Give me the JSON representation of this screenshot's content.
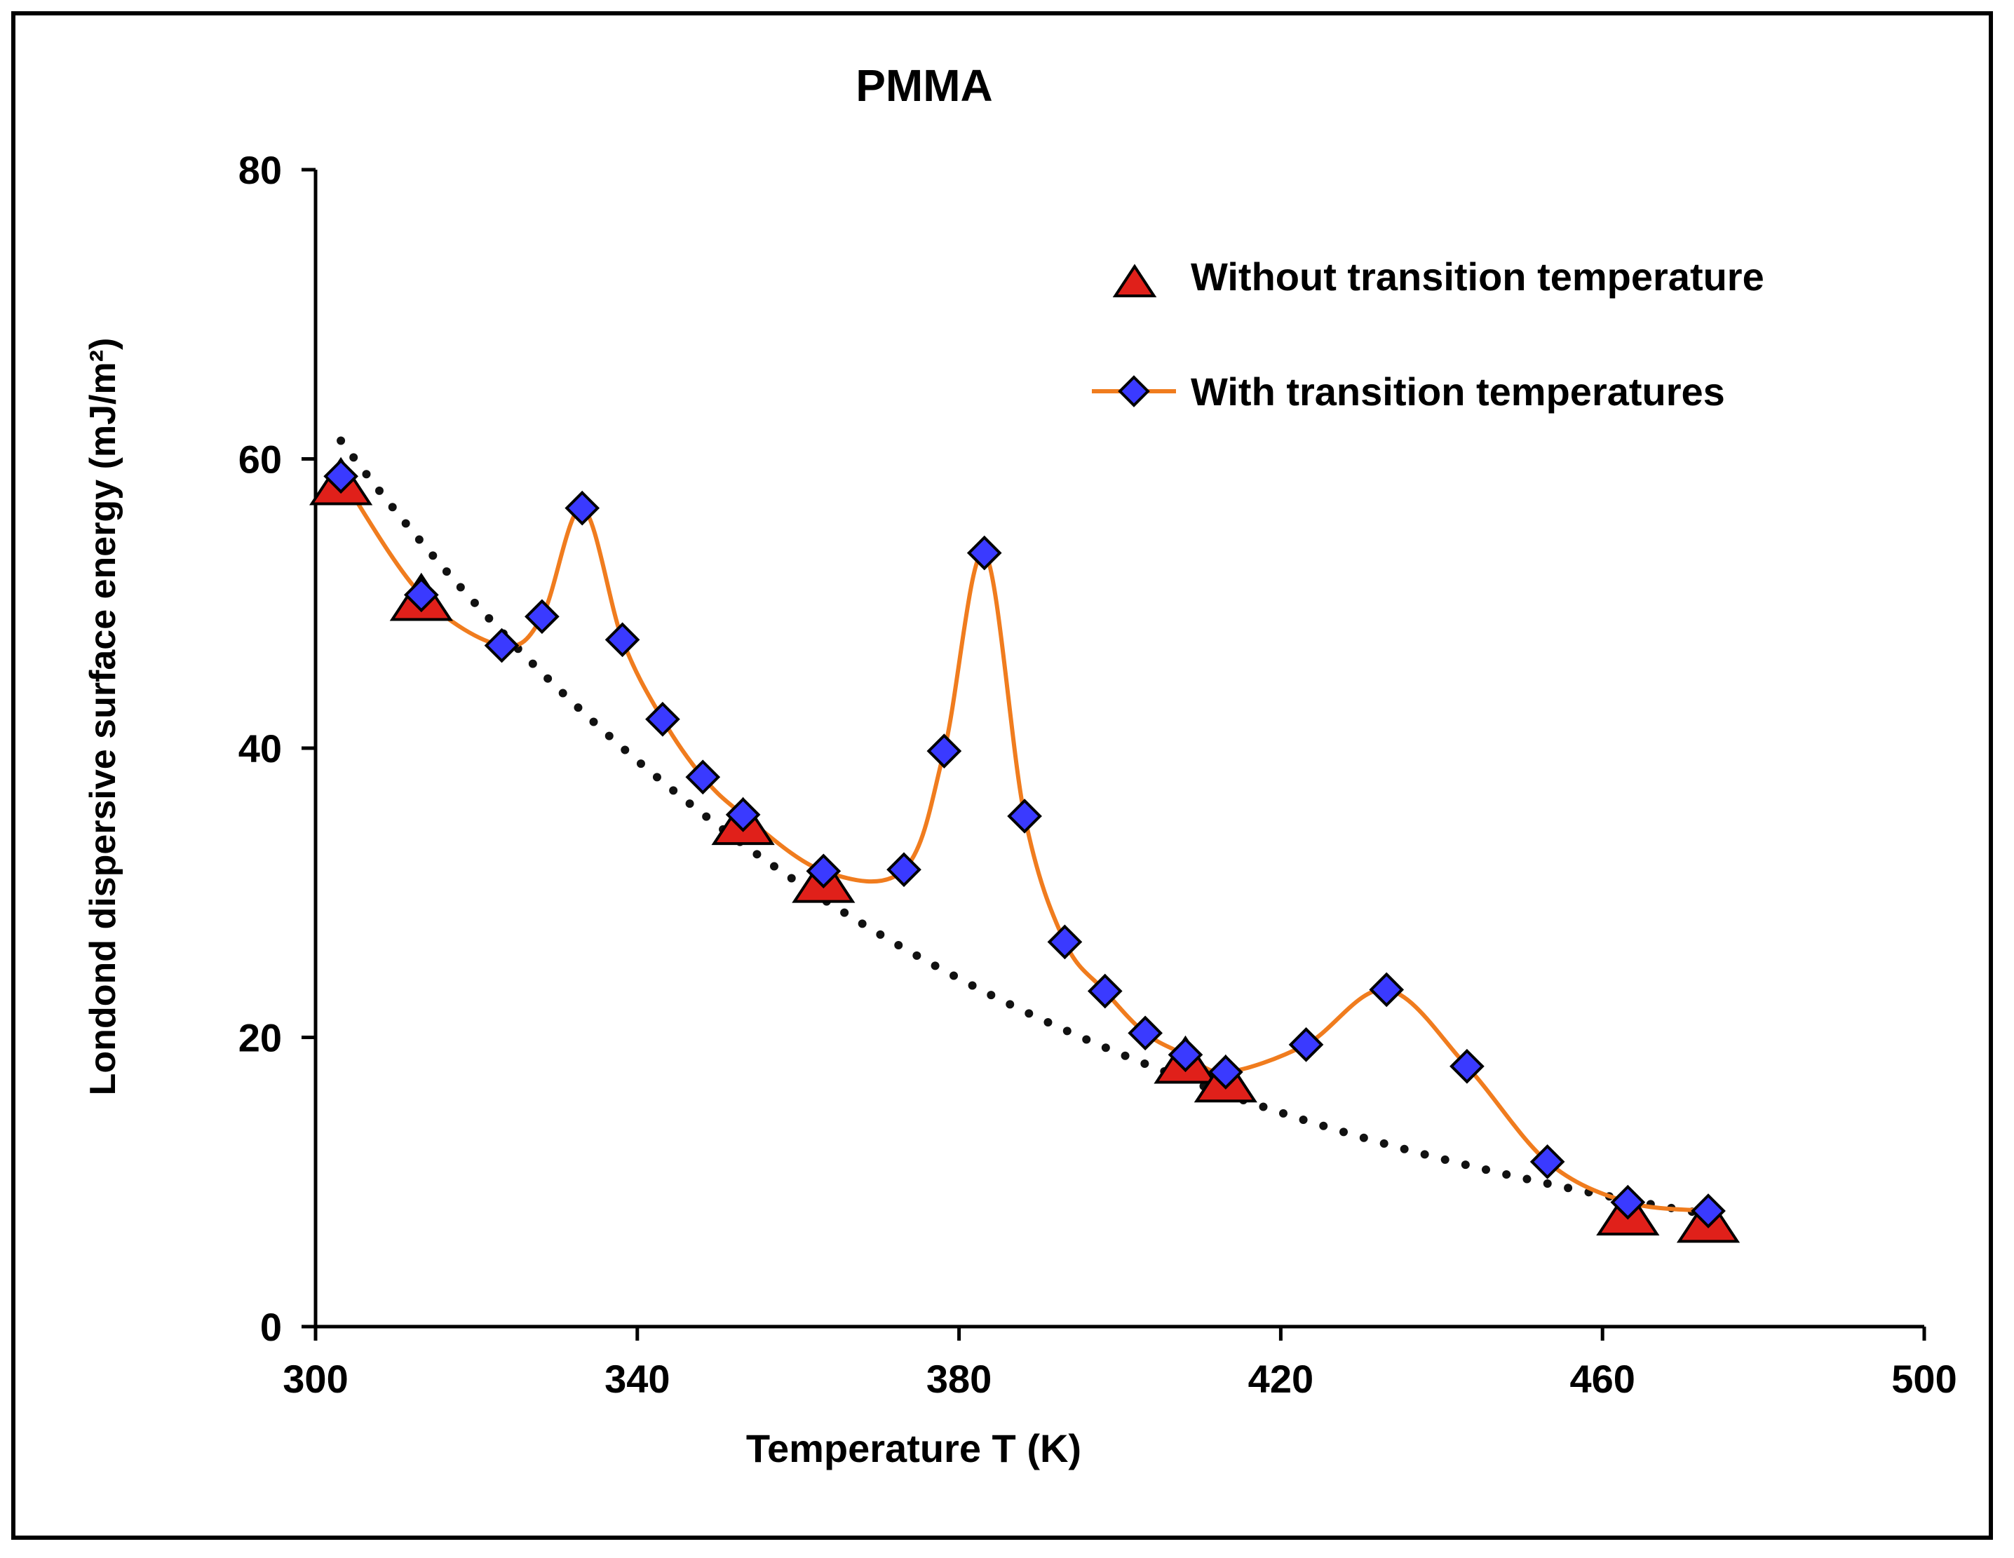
{
  "chart_data": {
    "type": "scatter-line",
    "title": "PMMA",
    "xlabel": "Temperature T (K)",
    "ylabel": "Londond dispersive surface energy (mJ/m²)",
    "xlim": [
      300,
      500
    ],
    "ylim": [
      0,
      80
    ],
    "x_ticks": [
      300,
      340,
      380,
      420,
      460,
      500
    ],
    "y_ticks": [
      0,
      20,
      40,
      60,
      80
    ],
    "legend_position": "top-right",
    "series": [
      {
        "name": "Without transition temperature",
        "marker": "triangle",
        "color": "#e0201a",
        "line": "dotted-trend",
        "trend_color": "#111111",
        "x": [
          303.15,
          313.15,
          353.15,
          363.15,
          408.15,
          413.15,
          463.15,
          473.15
        ],
        "values": [
          58.5,
          50.5,
          35.0,
          31.0,
          18.5,
          17.2,
          8.0,
          7.5
        ]
      },
      {
        "name": "With transition temperatures",
        "marker": "diamond",
        "color": "#3a3aff",
        "line": "smooth",
        "line_color": "#f07c1e",
        "x": [
          303.15,
          313.15,
          323.15,
          328.15,
          333.15,
          338.15,
          343.15,
          348.15,
          353.15,
          363.15,
          373.15,
          378.15,
          383.15,
          388.15,
          393.15,
          398.15,
          403.15,
          408.15,
          413.15,
          423.15,
          433.15,
          443.15,
          453.15,
          463.15,
          473.15
        ],
        "values": [
          58.8,
          50.6,
          47.1,
          49.1,
          56.6,
          47.5,
          42.0,
          38.0,
          35.4,
          31.5,
          31.6,
          39.8,
          53.5,
          35.3,
          26.6,
          23.2,
          20.3,
          18.8,
          17.6,
          19.5,
          23.3,
          18.0,
          11.4,
          8.6,
          8.0
        ]
      }
    ]
  }
}
